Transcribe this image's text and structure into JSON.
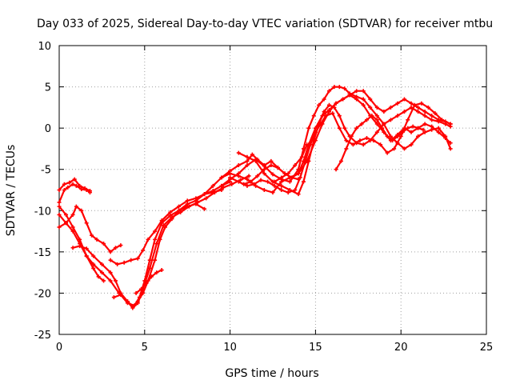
{
  "chart_data": {
    "type": "scatter",
    "title": "Day 033 of 2025, Sidereal Day-to-day VTEC variation (SDTVAR) for receiver mtbu",
    "xlabel": "GPS time / hours",
    "ylabel": "SDTVAR / TECUs",
    "xlim": [
      0,
      25
    ],
    "ylim": [
      -25,
      10
    ],
    "xticks": [
      0,
      5,
      10,
      15,
      20,
      25
    ],
    "yticks": [
      -25,
      -20,
      -15,
      -10,
      -5,
      0,
      5,
      10
    ],
    "xtick_labels": [
      "0",
      "5",
      "10",
      "15",
      "20",
      "25"
    ],
    "ytick_labels": [
      "-25",
      "-20",
      "-15",
      "-10",
      "-5",
      "0",
      "5",
      "10"
    ],
    "grid": true,
    "series_color": "#ff0000",
    "series": [
      {
        "x": [
          0.0,
          0.3,
          0.6,
          0.9,
          1.2,
          1.5,
          1.8
        ],
        "y": [
          -7.5,
          -6.8,
          -6.6,
          -6.2,
          -7.0,
          -7.3,
          -7.6
        ]
      },
      {
        "x": [
          0.0,
          0.3,
          0.5,
          0.8,
          1.0,
          1.3,
          1.6,
          1.8
        ],
        "y": [
          -9.0,
          -7.5,
          -7.2,
          -6.8,
          -7.0,
          -7.4,
          -7.5,
          -7.8
        ]
      },
      {
        "x": [
          0.0,
          0.4,
          0.8,
          1.2,
          1.6,
          2.0,
          2.3,
          2.6
        ],
        "y": [
          -9.5,
          -10.5,
          -12.0,
          -13.5,
          -15.5,
          -17.0,
          -18.0,
          -18.5
        ]
      },
      {
        "x": [
          0.0,
          0.4,
          0.8,
          1.0,
          1.3,
          1.6,
          1.9,
          2.2,
          2.6,
          3.0,
          3.3,
          3.6
        ],
        "y": [
          -12.0,
          -11.5,
          -10.5,
          -9.5,
          -10.0,
          -11.5,
          -13.0,
          -13.5,
          -14.0,
          -15.0,
          -14.5,
          -14.2
        ]
      },
      {
        "x": [
          0.0,
          0.4,
          0.8,
          1.2,
          1.6,
          2.0,
          2.5,
          3.0,
          3.5,
          4.0,
          4.3,
          4.6,
          4.9,
          5.2,
          5.6,
          5.9,
          6.2,
          6.6,
          7.0,
          7.5,
          8.0,
          8.5,
          9.0,
          9.5,
          10.0
        ],
        "y": [
          -10.5,
          -11.5,
          -12.5,
          -14.0,
          -15.5,
          -16.5,
          -17.5,
          -18.5,
          -20.0,
          -21.0,
          -21.6,
          -21.0,
          -20.0,
          -18.5,
          -16.0,
          -13.5,
          -12.0,
          -11.0,
          -10.0,
          -9.2,
          -8.8,
          -8.0,
          -7.6,
          -7.0,
          -6.5
        ]
      },
      {
        "x": [
          0.8,
          1.2,
          1.6,
          2.0,
          2.5,
          3.0,
          3.3,
          3.6,
          4.0,
          4.3,
          4.6,
          4.9,
          5.3,
          5.7,
          6.1,
          6.6,
          7.1,
          7.6,
          8.1,
          8.6,
          9.1,
          9.6,
          10.1,
          10.6,
          11.1
        ],
        "y": [
          -14.5,
          -14.3,
          -14.6,
          -15.5,
          -16.5,
          -17.5,
          -18.5,
          -20.0,
          -21.0,
          -21.8,
          -21.2,
          -19.5,
          -17.0,
          -14.0,
          -11.8,
          -10.8,
          -10.2,
          -9.5,
          -9.0,
          -8.5,
          -7.8,
          -7.2,
          -6.8,
          -6.3,
          -5.8
        ]
      },
      {
        "x": [
          3.2,
          3.6,
          4.0,
          4.4,
          4.7,
          5.0,
          5.3,
          5.6,
          6.0,
          6.5,
          7.0,
          7.5,
          8.0,
          8.5
        ],
        "y": [
          -20.5,
          -20.2,
          -21.2,
          -21.5,
          -20.5,
          -18.5,
          -16.0,
          -13.5,
          -11.5,
          -10.6,
          -10.0,
          -9.5,
          -9.2,
          -9.8
        ]
      },
      {
        "x": [
          3.0,
          3.4,
          3.8,
          4.2,
          4.6,
          4.9,
          5.2,
          5.6,
          6.0,
          6.5,
          7.0,
          7.5,
          8.0,
          8.5,
          9.0,
          9.5
        ],
        "y": [
          -16.0,
          -16.5,
          -16.3,
          -16.0,
          -15.8,
          -14.8,
          -13.5,
          -12.5,
          -11.2,
          -10.2,
          -9.5,
          -8.8,
          -8.5,
          -8.0,
          -7.8,
          -7.5
        ]
      },
      {
        "x": [
          4.5,
          4.8,
          5.1,
          5.4,
          5.7,
          6.0
        ],
        "y": [
          -20.0,
          -19.5,
          -18.8,
          -18.0,
          -17.5,
          -17.2
        ]
      },
      {
        "x": [
          8.5,
          9.0,
          9.5,
          10.0,
          10.5,
          11.0,
          11.3,
          11.6,
          12.0,
          12.4,
          12.8,
          13.2,
          13.6,
          14.0,
          14.3,
          14.6,
          15.0,
          15.4,
          15.8,
          16.2,
          16.6,
          17.0,
          17.4,
          17.8,
          18.2,
          18.6,
          19.0,
          19.4,
          19.8,
          20.2,
          20.6,
          21.0,
          21.4,
          21.8,
          22.2,
          22.6,
          22.9
        ],
        "y": [
          -8.0,
          -7.0,
          -6.0,
          -5.2,
          -4.5,
          -4.0,
          -3.2,
          -3.8,
          -4.5,
          -4.0,
          -4.8,
          -5.5,
          -6.0,
          -5.5,
          -4.0,
          -2.0,
          0.0,
          1.5,
          2.2,
          3.0,
          3.5,
          4.0,
          3.5,
          2.8,
          1.5,
          0.5,
          -0.5,
          -1.5,
          -0.8,
          0.0,
          -0.5,
          0.0,
          0.5,
          0.2,
          -0.5,
          -1.2,
          -1.8
        ]
      },
      {
        "x": [
          9.5,
          10.0,
          10.5,
          11.0,
          11.5,
          12.0,
          12.5,
          13.0,
          13.5,
          14.0,
          14.3,
          14.6,
          14.9,
          15.2,
          15.5,
          15.8,
          16.1,
          16.4,
          16.7,
          17.0,
          17.4,
          17.8,
          18.2,
          18.6,
          19.0,
          19.4,
          19.8,
          20.2,
          20.6,
          21.0,
          21.4,
          21.8,
          22.2,
          22.6,
          22.9
        ],
        "y": [
          -7.0,
          -6.2,
          -5.5,
          -4.5,
          -3.8,
          -4.6,
          -5.6,
          -6.2,
          -6.5,
          -5.0,
          -2.5,
          0.0,
          1.5,
          2.8,
          3.5,
          4.5,
          5.0,
          5.0,
          4.8,
          4.2,
          3.8,
          3.5,
          2.5,
          1.5,
          0.5,
          -1.0,
          -1.8,
          -2.5,
          -2.0,
          -1.0,
          -0.5,
          -0.2,
          0.0,
          -1.0,
          -2.5
        ]
      },
      {
        "x": [
          10.0,
          10.5,
          11.0,
          11.4,
          11.8,
          12.2,
          12.6,
          13.0,
          13.4,
          13.8,
          14.1,
          14.4,
          14.7,
          15.0,
          15.3,
          15.6,
          16.0,
          16.4,
          16.8,
          17.2,
          17.6,
          18.0,
          18.4,
          18.8,
          19.2,
          19.6,
          20.0,
          20.4,
          20.8,
          21.2,
          21.6,
          22.0,
          22.4,
          22.9
        ],
        "y": [
          -6.0,
          -6.5,
          -7.0,
          -6.8,
          -6.3,
          -6.5,
          -7.0,
          -7.5,
          -7.8,
          -7.5,
          -6.0,
          -4.0,
          -2.0,
          -0.5,
          0.5,
          1.5,
          1.8,
          0.0,
          -1.5,
          -2.0,
          -1.5,
          -1.2,
          -1.5,
          -2.0,
          -3.0,
          -2.5,
          -1.0,
          1.0,
          2.8,
          3.0,
          2.5,
          1.8,
          1.0,
          0.5
        ]
      },
      {
        "x": [
          10.5,
          11.0,
          11.5,
          12.0,
          12.5,
          13.0,
          13.5,
          14.0,
          14.3,
          14.6,
          14.9,
          15.2,
          15.5,
          15.8,
          16.1,
          16.4,
          16.7,
          17.0,
          17.4,
          17.8,
          18.2,
          18.6,
          19.0,
          19.4,
          19.8,
          20.2,
          20.6,
          21.0,
          21.4,
          21.8,
          22.2,
          22.6,
          22.9
        ],
        "y": [
          -3.0,
          -3.5,
          -4.0,
          -5.5,
          -6.5,
          -7.0,
          -7.5,
          -8.0,
          -6.5,
          -4.0,
          -1.5,
          0.5,
          2.0,
          2.8,
          2.5,
          1.5,
          0.0,
          -1.0,
          -1.8,
          -2.0,
          -1.5,
          -0.5,
          0.5,
          1.0,
          1.5,
          2.0,
          2.5,
          2.0,
          1.5,
          1.0,
          0.8,
          0.5,
          0.2
        ]
      },
      {
        "x": [
          9.5,
          10.0,
          10.5,
          11.0,
          11.5,
          12.0,
          12.5,
          13.0,
          13.5,
          14.0,
          14.5,
          15.0,
          15.4,
          15.8,
          16.2,
          16.6,
          17.0,
          17.4,
          17.8,
          18.2,
          18.6,
          19.0,
          19.4,
          19.8,
          20.2,
          20.6,
          21.0,
          21.4,
          21.8,
          22.2,
          22.6,
          22.9
        ],
        "y": [
          -6.0,
          -5.5,
          -5.8,
          -6.2,
          -7.0,
          -7.5,
          -7.8,
          -6.5,
          -6.0,
          -5.5,
          -4.0,
          -1.5,
          0.5,
          2.0,
          3.0,
          3.5,
          4.0,
          4.5,
          4.5,
          3.5,
          2.5,
          2.0,
          2.5,
          3.0,
          3.5,
          3.0,
          2.5,
          2.0,
          1.5,
          1.0,
          0.8,
          0.5
        ]
      },
      {
        "x": [
          16.2,
          16.5,
          16.8,
          17.1,
          17.4,
          17.7,
          18.0,
          18.3,
          18.6,
          18.9,
          19.2,
          19.5,
          19.8,
          20.1,
          20.4,
          20.7,
          21.0,
          21.3
        ],
        "y": [
          -5.0,
          -4.0,
          -2.5,
          -1.0,
          0.0,
          0.5,
          1.0,
          1.5,
          1.0,
          0.0,
          -1.0,
          -1.5,
          -1.0,
          -0.5,
          0.0,
          0.2,
          0.0,
          -0.2
        ]
      },
      {
        "x": [
          10.8,
          11.2,
          11.6,
          12.0,
          12.4,
          12.8,
          13.2,
          13.6,
          14.0
        ],
        "y": [
          -6.8,
          -6.5,
          -5.8,
          -5.0,
          -4.5,
          -4.8,
          -5.5,
          -6.0,
          -6.2
        ]
      },
      {
        "x": [
          12.6,
          13.0,
          13.4,
          13.8,
          14.2,
          14.5
        ],
        "y": [
          -6.5,
          -6.0,
          -5.5,
          -4.5,
          -3.5,
          -2.0
        ]
      }
    ]
  }
}
